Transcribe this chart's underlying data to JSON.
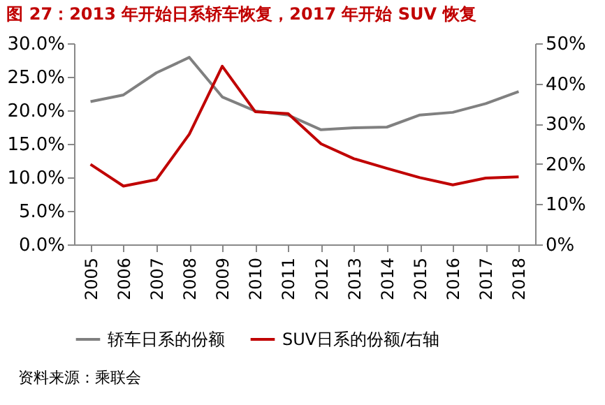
{
  "chart_data": {
    "type": "line",
    "title": "图 27：2013 年开始日系轿车恢复，2017 年开始 SUV 恢复",
    "categories": [
      "2005",
      "2006",
      "2007",
      "2008",
      "2009",
      "2010",
      "2011",
      "2012",
      "2013",
      "2014",
      "2015",
      "2016",
      "2017",
      "2018"
    ],
    "series": [
      {
        "name": "轿车日系的份额",
        "color": "#808080",
        "values": [
          21.3,
          22.3,
          25.6,
          27.9,
          22.0,
          19.9,
          19.3,
          17.1,
          17.4,
          17.5,
          19.3,
          19.7,
          21.0,
          22.8
        ]
      },
      {
        "name": "SUV日系的份额/右轴",
        "color": "#c00000",
        "axis": "y2",
        "values": [
          19.9,
          14.5,
          16.1,
          27.4,
          44.3,
          33.0,
          32.5,
          25.0,
          21.3,
          18.9,
          16.6,
          14.8,
          16.5,
          16.8
        ]
      }
    ],
    "ylim": [
      0,
      30
    ],
    "yticks": [
      {
        "value": 0,
        "label": "0.0%"
      },
      {
        "value": 5,
        "label": "5.0%"
      },
      {
        "value": 10,
        "label": "10.0%"
      },
      {
        "value": 15,
        "label": "15.0%"
      },
      {
        "value": 20,
        "label": "20.0%"
      },
      {
        "value": 25,
        "label": "25.0%"
      },
      {
        "value": 30,
        "label": "30.0%"
      }
    ],
    "y2lim": [
      0,
      50
    ],
    "y2ticks": [
      {
        "value": 0,
        "label": "0%"
      },
      {
        "value": 10,
        "label": "10%"
      },
      {
        "value": 20,
        "label": "20%"
      },
      {
        "value": 30,
        "label": "30%"
      },
      {
        "value": 40,
        "label": "40%"
      },
      {
        "value": 50,
        "label": "50%"
      }
    ],
    "grid": false,
    "legend": "bottom",
    "marker": "none",
    "line_style": "solid",
    "annotations": [
      "资料来源：乘联会"
    ]
  }
}
